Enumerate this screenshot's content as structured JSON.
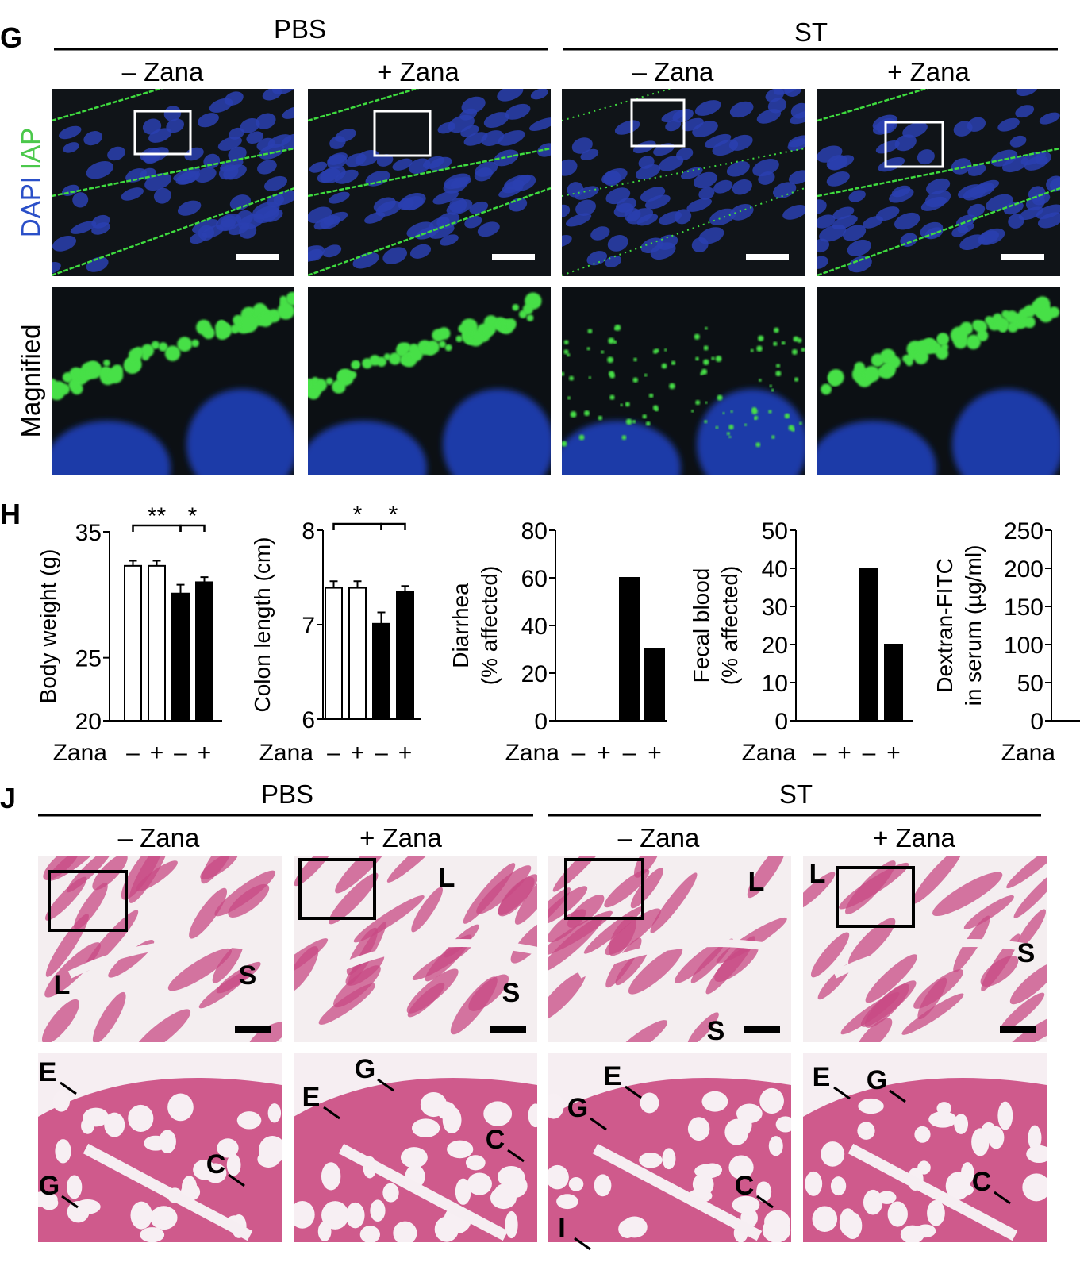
{
  "panel_labels": [
    "G",
    "H",
    "J"
  ],
  "panel_g": {
    "groups": [
      "PBS",
      "ST"
    ],
    "conditions": [
      "– Zana",
      "+ Zana",
      "– Zana",
      "+ Zana"
    ],
    "row_labels": {
      "stains": [
        "DAPI",
        "IAP"
      ],
      "magnified": "Magnified"
    }
  },
  "chart_data": [
    {
      "type": "bar",
      "y_label": [
        "Body weight (g)"
      ],
      "x_label": "Zana",
      "categories": [
        "–",
        "+",
        "–",
        "+"
      ],
      "values": [
        32.3,
        32.3,
        30.1,
        31.0
      ],
      "errors": [
        0.4,
        0.4,
        0.7,
        0.4
      ],
      "colors": [
        "#ffffff",
        "#ffffff",
        "#000000",
        "#000000"
      ],
      "ylim": [
        20,
        35
      ],
      "yticks": [
        20,
        25,
        35
      ],
      "annotations": [
        {
          "text": "**",
          "from": 0,
          "to": 2
        },
        {
          "text": "*",
          "from": 2,
          "to": 3
        }
      ]
    },
    {
      "type": "bar",
      "y_label": [
        "Colon length (cm)"
      ],
      "x_label": "Zana",
      "categories": [
        "–",
        "+",
        "–",
        "+"
      ],
      "values": [
        7.39,
        7.39,
        7.01,
        7.35
      ],
      "errors": [
        0.07,
        0.07,
        0.12,
        0.06
      ],
      "colors": [
        "#ffffff",
        "#ffffff",
        "#000000",
        "#000000"
      ],
      "ylim": [
        6,
        8
      ],
      "yticks": [
        6,
        7,
        8
      ],
      "annotations": [
        {
          "text": "*",
          "from": 0,
          "to": 2
        },
        {
          "text": "*",
          "from": 2,
          "to": 3
        }
      ]
    },
    {
      "type": "bar",
      "y_label": [
        "Diarrhea",
        "(% affected)"
      ],
      "x_label": "Zana",
      "categories": [
        "–",
        "+",
        "–",
        "+"
      ],
      "values": [
        0,
        0,
        60,
        30
      ],
      "colors": [
        "#000000",
        "#000000",
        "#000000",
        "#000000"
      ],
      "ylim": [
        0,
        80
      ],
      "yticks": [
        0,
        20,
        40,
        60,
        80
      ]
    },
    {
      "type": "bar",
      "y_label": [
        "Fecal blood",
        "(% affected)"
      ],
      "x_label": "Zana",
      "categories": [
        "–",
        "+",
        "–",
        "+"
      ],
      "values": [
        0,
        0,
        40,
        20
      ],
      "colors": [
        "#000000",
        "#000000",
        "#000000",
        "#000000"
      ],
      "ylim": [
        0,
        50
      ],
      "yticks": [
        0,
        10,
        20,
        30,
        40,
        50
      ]
    },
    {
      "type": "bar",
      "y_label": [
        "Dextran-FITC",
        "in serum (µg/ml)"
      ],
      "x_label": "Zana",
      "ylim": [
        0,
        250
      ],
      "yticks": [
        0,
        50,
        100,
        150,
        200,
        250
      ]
    }
  ],
  "panel_j": {
    "groups": [
      "PBS",
      "ST"
    ],
    "conditions": [
      "– Zana",
      "+ Zana",
      "– Zana",
      "+ Zana"
    ],
    "tissue_labels": [
      [
        "L",
        "S"
      ],
      [
        "L",
        "S"
      ],
      [
        "L",
        "S"
      ],
      [
        "L",
        "S"
      ]
    ],
    "magnified_labels": [
      [
        "E",
        "C",
        "G"
      ],
      [
        "E",
        "G",
        "C"
      ],
      [
        "E",
        "G",
        "C",
        "I"
      ],
      [
        "E",
        "G",
        "C"
      ]
    ]
  }
}
